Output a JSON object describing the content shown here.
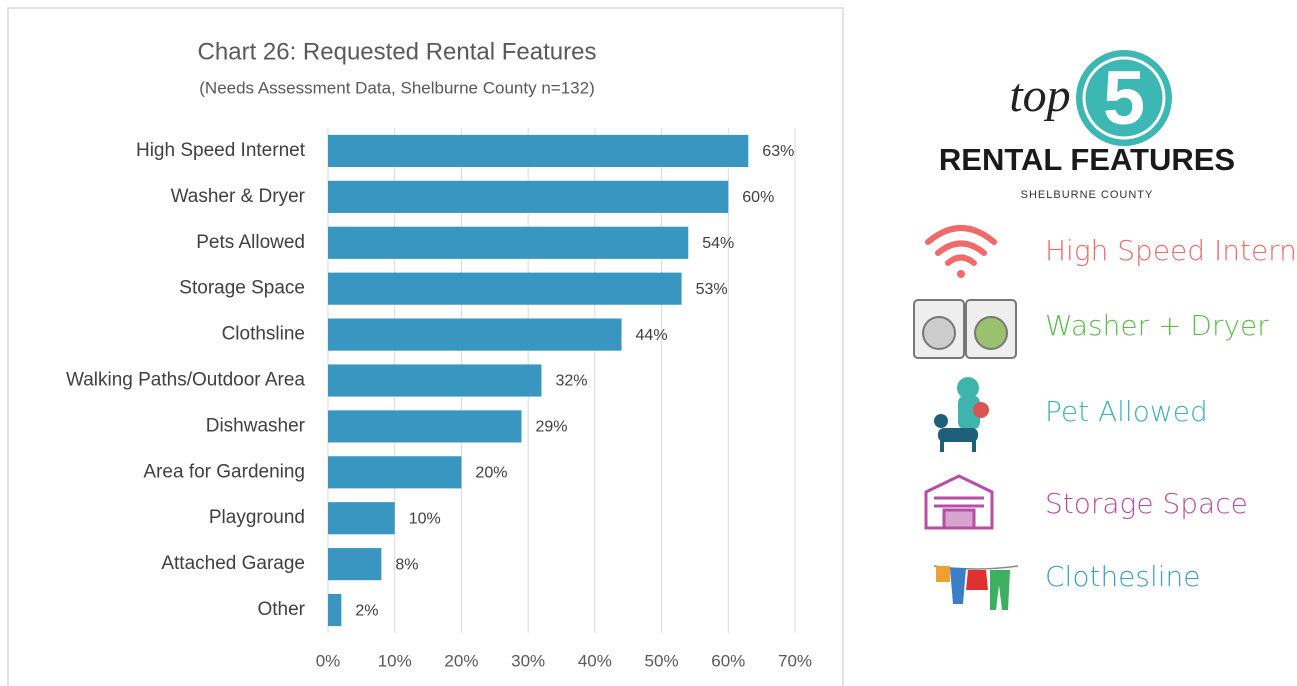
{
  "chart_data": {
    "type": "bar",
    "orientation": "horizontal",
    "title": "Chart 26: Requested Rental Features",
    "subtitle": "(Needs Assessment Data, Shelburne County n=132)",
    "categories": [
      "High Speed Internet",
      "Washer & Dryer",
      "Pets Allowed",
      "Storage Space",
      "Clothsline",
      "Walking Paths/Outdoor Area",
      "Dishwasher",
      "Area for Gardening",
      "Playground",
      "Attached Garage",
      "Other"
    ],
    "values": [
      63,
      60,
      54,
      53,
      44,
      32,
      29,
      20,
      10,
      8,
      2
    ],
    "value_labels": [
      "63%",
      "60%",
      "54%",
      "53%",
      "44%",
      "32%",
      "29%",
      "20%",
      "10%",
      "8%",
      "2%"
    ],
    "color": "#3896c0",
    "xlim": [
      0,
      70
    ],
    "xticks": [
      {
        "value": 0,
        "label": "0%"
      },
      {
        "value": 10,
        "label": "10%"
      },
      {
        "value": 20,
        "label": "20%"
      },
      {
        "value": 30,
        "label": "30%"
      },
      {
        "value": 40,
        "label": "40%"
      },
      {
        "value": 50,
        "label": "50%"
      },
      {
        "value": 60,
        "label": "60%"
      },
      {
        "value": 70,
        "label": "70%"
      }
    ],
    "grid": true
  },
  "infographic": {
    "top": "top",
    "number": "5",
    "heading": "RENTAL FEATURES",
    "region": "SHELBURNE COUNTY",
    "items": [
      {
        "label": "High Speed Internet",
        "color": "#f06a6a"
      },
      {
        "label": "Washer + Dryer",
        "color": "#5cba4e"
      },
      {
        "label": "Pet Allowed",
        "color": "#3fb3ad"
      },
      {
        "label": "Storage Space",
        "color": "#b54ea4"
      },
      {
        "label": "Clothesline",
        "color": "#3a9fc4"
      }
    ]
  }
}
